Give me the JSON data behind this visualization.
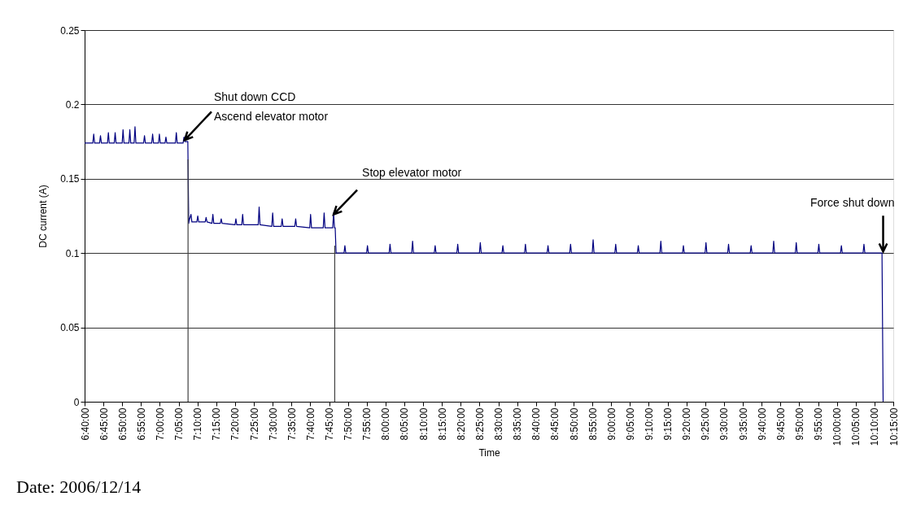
{
  "chart_data": {
    "type": "line",
    "xlabel": "Time",
    "ylabel": "DC current (A)",
    "xlim": [
      6.666667,
      10.25
    ],
    "xticks": [
      {
        "value": 6.666667,
        "label": "6:40:00"
      },
      {
        "value": 6.75,
        "label": "6:45:00"
      },
      {
        "value": 6.833333,
        "label": "6:50:00"
      },
      {
        "value": 6.916667,
        "label": "6:55:00"
      },
      {
        "value": 7,
        "label": "7:00:00"
      },
      {
        "value": 7.083333,
        "label": "7:05:00"
      },
      {
        "value": 7.166667,
        "label": "7:10:00"
      },
      {
        "value": 7.25,
        "label": "7:15:00"
      },
      {
        "value": 7.333333,
        "label": "7:20:00"
      },
      {
        "value": 7.416667,
        "label": "7:25:00"
      },
      {
        "value": 7.5,
        "label": "7:30:00"
      },
      {
        "value": 7.583333,
        "label": "7:35:00"
      },
      {
        "value": 7.666667,
        "label": "7:40:00"
      },
      {
        "value": 7.75,
        "label": "7:45:00"
      },
      {
        "value": 7.833333,
        "label": "7:50:00"
      },
      {
        "value": 7.916667,
        "label": "7:55:00"
      },
      {
        "value": 8,
        "label": "8:00:00"
      },
      {
        "value": 8.083333,
        "label": "8:05:00"
      },
      {
        "value": 8.166667,
        "label": "8:10:00"
      },
      {
        "value": 8.25,
        "label": "8:15:00"
      },
      {
        "value": 8.333333,
        "label": "8:20:00"
      },
      {
        "value": 8.416667,
        "label": "8:25:00"
      },
      {
        "value": 8.5,
        "label": "8:30:00"
      },
      {
        "value": 8.583333,
        "label": "8:35:00"
      },
      {
        "value": 8.666667,
        "label": "8:40:00"
      },
      {
        "value": 8.75,
        "label": "8:45:00"
      },
      {
        "value": 8.833333,
        "label": "8:50:00"
      },
      {
        "value": 8.916667,
        "label": "8:55:00"
      },
      {
        "value": 9,
        "label": "9:00:00"
      },
      {
        "value": 9.083333,
        "label": "9:05:00"
      },
      {
        "value": 9.166667,
        "label": "9:10:00"
      },
      {
        "value": 9.25,
        "label": "9:15:00"
      },
      {
        "value": 9.333333,
        "label": "9:20:00"
      },
      {
        "value": 9.416667,
        "label": "9:25:00"
      },
      {
        "value": 9.5,
        "label": "9:30:00"
      },
      {
        "value": 9.583333,
        "label": "9:35:00"
      },
      {
        "value": 9.666667,
        "label": "9:40:00"
      },
      {
        "value": 9.75,
        "label": "9:45:00"
      },
      {
        "value": 9.833333,
        "label": "9:50:00"
      },
      {
        "value": 9.916667,
        "label": "9:55:00"
      },
      {
        "value": 10,
        "label": "10:00:00"
      },
      {
        "value": 10.083333,
        "label": "10:05:00"
      },
      {
        "value": 10.166667,
        "label": "10:10:00"
      },
      {
        "value": 10.25,
        "label": "10:15:00"
      }
    ],
    "ylim": [
      0,
      0.25
    ],
    "yticks": [
      0,
      0.05,
      0.1,
      0.15,
      0.2,
      0.25
    ],
    "grid": "y",
    "marker": "none",
    "line_style": "solid",
    "series": [
      {
        "color": "#000080",
        "x": [
          6.667,
          6.703,
          6.707,
          6.711,
          6.733,
          6.737,
          6.741,
          6.768,
          6.772,
          6.776,
          6.798,
          6.802,
          6.806,
          6.833,
          6.837,
          6.841,
          6.863,
          6.867,
          6.871,
          6.886,
          6.89,
          6.894,
          6.928,
          6.932,
          6.936,
          6.964,
          6.968,
          6.972,
          6.994,
          6.998,
          7.002,
          7.023,
          7.027,
          7.031,
          7.069,
          7.073,
          7.077,
          7.103,
          7.107,
          7.111,
          7.124,
          7.128,
          7.13,
          7.138,
          7.142,
          7.164,
          7.168,
          7.172,
          7.201,
          7.205,
          7.209,
          7.231,
          7.235,
          7.239,
          7.268,
          7.272,
          7.276,
          7.333,
          7.337,
          7.341,
          7.363,
          7.367,
          7.371,
          7.436,
          7.44,
          7.444,
          7.496,
          7.5,
          7.504,
          7.538,
          7.542,
          7.546,
          7.598,
          7.602,
          7.606,
          7.664,
          7.668,
          7.672,
          7.724,
          7.728,
          7.732,
          7.766,
          7.77,
          7.774,
          7.777,
          7.781,
          7.816,
          7.82,
          7.824,
          7.916,
          7.92,
          7.924,
          8.016,
          8.02,
          8.024,
          8.116,
          8.12,
          8.124,
          8.216,
          8.22,
          8.224,
          8.316,
          8.32,
          8.324,
          8.416,
          8.42,
          8.424,
          8.516,
          8.52,
          8.524,
          8.616,
          8.62,
          8.624,
          8.716,
          8.72,
          8.724,
          8.816,
          8.82,
          8.824,
          8.916,
          8.92,
          8.924,
          9.016,
          9.02,
          9.024,
          9.116,
          9.12,
          9.124,
          9.216,
          9.22,
          9.224,
          9.316,
          9.32,
          9.324,
          9.416,
          9.42,
          9.424,
          9.516,
          9.52,
          9.524,
          9.616,
          9.62,
          9.624,
          9.716,
          9.72,
          9.724,
          9.816,
          9.82,
          9.824,
          9.916,
          9.92,
          9.924,
          10.016,
          10.02,
          10.024,
          10.116,
          10.12,
          10.124,
          10.2,
          10.205
        ],
        "values": [
          0.174,
          0.174,
          0.18,
          0.174,
          0.174,
          0.179,
          0.174,
          0.174,
          0.181,
          0.174,
          0.174,
          0.181,
          0.174,
          0.174,
          0.183,
          0.174,
          0.174,
          0.183,
          0.174,
          0.174,
          0.185,
          0.174,
          0.174,
          0.179,
          0.174,
          0.174,
          0.18,
          0.174,
          0.174,
          0.18,
          0.174,
          0.174,
          0.178,
          0.174,
          0.174,
          0.181,
          0.174,
          0.174,
          0.178,
          0.175,
          0.175,
          0.12,
          0.122,
          0.126,
          0.121,
          0.121,
          0.125,
          0.121,
          0.121,
          0.124,
          0.121,
          0.12,
          0.126,
          0.12,
          0.12,
          0.123,
          0.12,
          0.119,
          0.123,
          0.119,
          0.119,
          0.126,
          0.119,
          0.119,
          0.131,
          0.119,
          0.118,
          0.127,
          0.118,
          0.118,
          0.123,
          0.118,
          0.118,
          0.123,
          0.118,
          0.117,
          0.126,
          0.117,
          0.117,
          0.127,
          0.117,
          0.117,
          0.127,
          0.117,
          0.117,
          0.1,
          0.1,
          0.105,
          0.1,
          0.1,
          0.105,
          0.1,
          0.1,
          0.106,
          0.1,
          0.1,
          0.108,
          0.1,
          0.1,
          0.105,
          0.1,
          0.1,
          0.106,
          0.1,
          0.1,
          0.107,
          0.1,
          0.1,
          0.105,
          0.1,
          0.1,
          0.106,
          0.1,
          0.1,
          0.105,
          0.1,
          0.1,
          0.106,
          0.1,
          0.1,
          0.109,
          0.1,
          0.1,
          0.106,
          0.1,
          0.1,
          0.105,
          0.1,
          0.1,
          0.108,
          0.1,
          0.1,
          0.105,
          0.1,
          0.1,
          0.107,
          0.1,
          0.1,
          0.106,
          0.1,
          0.1,
          0.105,
          0.1,
          0.1,
          0.108,
          0.1,
          0.1,
          0.107,
          0.1,
          0.1,
          0.106,
          0.1,
          0.1,
          0.105,
          0.1,
          0.1,
          0.106,
          0.1,
          0.1,
          0
        ]
      },
      {
        "color": "#404040",
        "x": [
          7.125,
          7.125
        ],
        "values": [
          0,
          0.163
        ]
      },
      {
        "color": "#404040",
        "x": [
          7.775,
          7.775
        ],
        "values": [
          0,
          0.105
        ]
      }
    ],
    "annotations": [
      {
        "text": "Shut down CCD\nAscend elevator motor",
        "x": 7.11,
        "y": 0.176
      },
      {
        "text": "Stop elevator motor",
        "x": 7.77,
        "y": 0.126
      },
      {
        "text": "Force shut down",
        "x": 10.205,
        "y": 0.101
      },
      "Date: 2006/12/14"
    ]
  }
}
